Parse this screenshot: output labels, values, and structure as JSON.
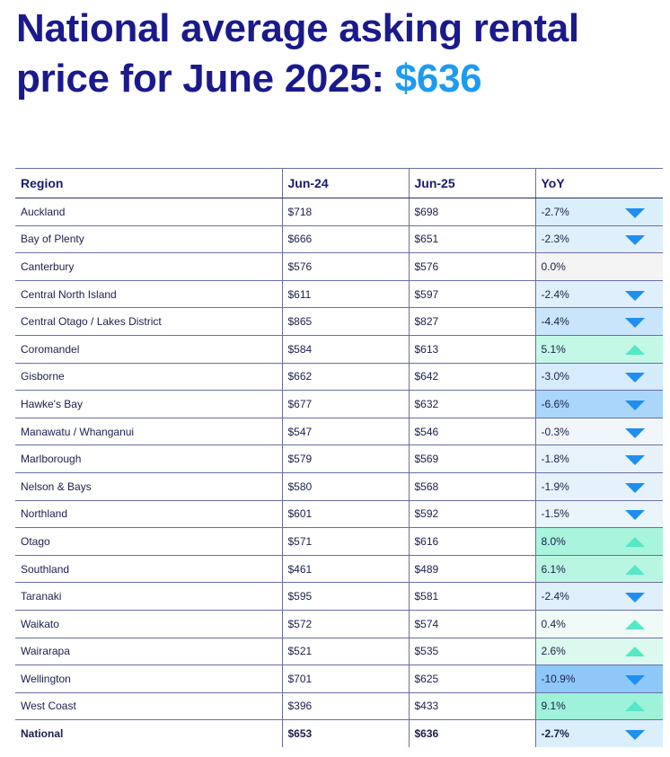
{
  "title": {
    "main": "National average asking rental price for June 2025: ",
    "value": "$636"
  },
  "colors": {
    "title": "#1a1a8c",
    "accent": "#1e9bf0",
    "down_arrow": "#1e8ff0",
    "up_arrow": "#55e8c6"
  },
  "table": {
    "headers": [
      "Region",
      "Jun-24",
      "Jun-25",
      "YoY"
    ],
    "rows": [
      {
        "region": "Auckland",
        "jun24": "$718",
        "jun25": "$698",
        "yoy": "-2.7%",
        "direction": "down",
        "shade": "#dbeefb"
      },
      {
        "region": "Bay of Plenty",
        "jun24": "$666",
        "jun25": "$651",
        "yoy": "-2.3%",
        "direction": "down",
        "shade": "#e0f0fb"
      },
      {
        "region": "Canterbury",
        "jun24": "$576",
        "jun25": "$576",
        "yoy": "0.0%",
        "direction": "none",
        "shade": "#f4f4f4"
      },
      {
        "region": "Central North Island",
        "jun24": "$611",
        "jun25": "$597",
        "yoy": "-2.4%",
        "direction": "down",
        "shade": "#dfeffb"
      },
      {
        "region": "Central Otago / Lakes District",
        "jun24": "$865",
        "jun25": "$827",
        "yoy": "-4.4%",
        "direction": "down",
        "shade": "#c9e5fb"
      },
      {
        "region": "Coromandel",
        "jun24": "$584",
        "jun25": "$613",
        "yoy": "5.1%",
        "direction": "up",
        "shade": "#c3f7e6"
      },
      {
        "region": "Gisborne",
        "jun24": "$662",
        "jun25": "$642",
        "yoy": "-3.0%",
        "direction": "down",
        "shade": "#d6ebfb"
      },
      {
        "region": "Hawke's Bay",
        "jun24": "$677",
        "jun25": "$632",
        "yoy": "-6.6%",
        "direction": "down",
        "shade": "#a9d6fa"
      },
      {
        "region": "Manawatu / Whanganui",
        "jun24": "$547",
        "jun25": "$546",
        "yoy": "-0.3%",
        "direction": "down",
        "shade": "#f1f6fb"
      },
      {
        "region": "Marlborough",
        "jun24": "$579",
        "jun25": "$569",
        "yoy": "-1.8%",
        "direction": "down",
        "shade": "#e7f2fb"
      },
      {
        "region": "Nelson & Bays",
        "jun24": "$580",
        "jun25": "$568",
        "yoy": "-1.9%",
        "direction": "down",
        "shade": "#e6f2fb"
      },
      {
        "region": "Northland",
        "jun24": "$601",
        "jun25": "$592",
        "yoy": "-1.5%",
        "direction": "down",
        "shade": "#eaf4fb"
      },
      {
        "region": "Otago",
        "jun24": "$571",
        "jun25": "$616",
        "yoy": "8.0%",
        "direction": "up",
        "shade": "#a8f4dd"
      },
      {
        "region": "Southland",
        "jun24": "$461",
        "jun25": "$489",
        "yoy": "6.1%",
        "direction": "up",
        "shade": "#b9f6e2"
      },
      {
        "region": "Taranaki",
        "jun24": "$595",
        "jun25": "$581",
        "yoy": "-2.4%",
        "direction": "down",
        "shade": "#dfeffb"
      },
      {
        "region": "Waikato",
        "jun24": "$572",
        "jun25": "$574",
        "yoy": "0.4%",
        "direction": "up",
        "shade": "#f0fbf7"
      },
      {
        "region": "Wairarapa",
        "jun24": "$521",
        "jun25": "$535",
        "yoy": "2.6%",
        "direction": "up",
        "shade": "#dbf9ef"
      },
      {
        "region": "Wellington",
        "jun24": "$701",
        "jun25": "$625",
        "yoy": "-10.9%",
        "direction": "down",
        "shade": "#8ec8f8"
      },
      {
        "region": "West Coast",
        "jun24": "$396",
        "jun25": "$433",
        "yoy": "9.1%",
        "direction": "up",
        "shade": "#9ff2da"
      },
      {
        "region": "National",
        "jun24": "$653",
        "jun25": "$636",
        "yoy": "-2.7%",
        "direction": "down",
        "shade": "#dbeefb"
      }
    ]
  }
}
